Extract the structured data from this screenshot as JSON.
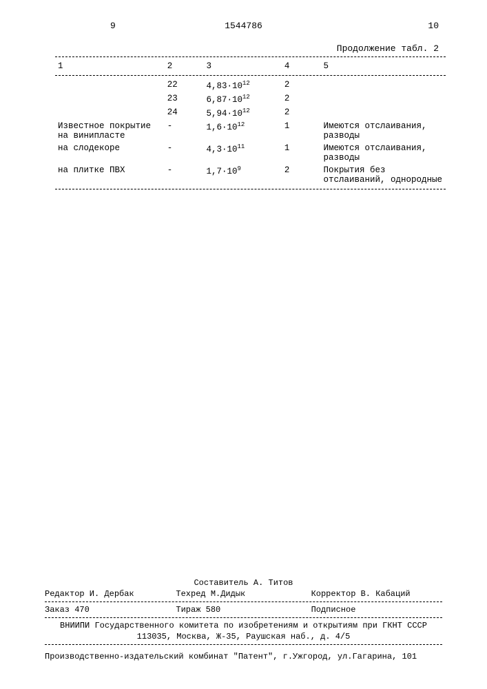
{
  "header": {
    "page_left": "9",
    "doc_number": "1544786",
    "page_right": "10",
    "continuation": "Продолжение табл. 2"
  },
  "table": {
    "type": "table",
    "columns": [
      "1",
      "2",
      "3",
      "4",
      "5"
    ],
    "rows": [
      {
        "c1": "",
        "c2": "22",
        "c3_base": "4,83·10",
        "c3_exp": "12",
        "c4": "2",
        "c5": ""
      },
      {
        "c1": "",
        "c2": "23",
        "c3_base": "6,87·10",
        "c3_exp": "12",
        "c4": "2",
        "c5": ""
      },
      {
        "c1": "",
        "c2": "24",
        "c3_base": "5,94·10",
        "c3_exp": "12",
        "c4": "2",
        "c5": ""
      },
      {
        "c1": "Известное покрытие на винипласте",
        "c2": "-",
        "c3_base": "1,6·10",
        "c3_exp": "12",
        "c4": "1",
        "c5": "Имеются отслаивания, разводы"
      },
      {
        "c1": "на слодекоре",
        "c2": "-",
        "c3_base": "4,3·10",
        "c3_exp": "11",
        "c4": "1",
        "c5": "Имеются отслаивания, разводы"
      },
      {
        "c1": "на плитке ПВХ",
        "c2": "-",
        "c3_base": "1,7·10",
        "c3_exp": "9",
        "c4": "2",
        "c5": "Покрытия без отслаиваний, однородные"
      }
    ],
    "background_color": "#ffffff",
    "text_color": "#000000",
    "font_family": "Courier New",
    "font_size_pt": 10
  },
  "footer": {
    "compiler": "Составитель А. Титов",
    "editor": "Редактор И. Дербак",
    "techred": "Техред М.Дидык",
    "corrector": "Корректор В. Кабаций",
    "order": "Заказ 470",
    "tirage": "Тираж 580",
    "subscribed": "Подписное",
    "org1": "ВНИИПИ Государственного комитета по изобретениям и открытиям при ГКНТ СССР",
    "org2": "113035, Москва, Ж-35, Раушская наб., д. 4/5",
    "printer": "Производственно-издательский комбинат \"Патент\", г.Ужгород, ул.Гагарина, 101"
  }
}
